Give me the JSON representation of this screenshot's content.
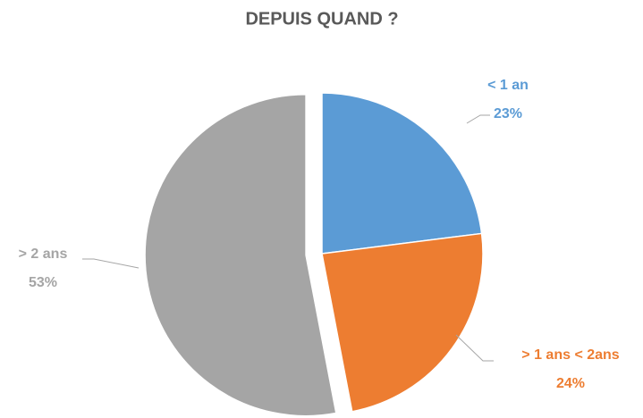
{
  "chart_data": {
    "type": "pie",
    "title": "DEPUIS QUAND ?",
    "categories": [
      "< 1 an",
      "> 1 ans < 2ans",
      "> 2 ans"
    ],
    "values": [
      23,
      24,
      53
    ],
    "value_labels": [
      "23%",
      "24%",
      "53%"
    ],
    "colors": [
      "#5b9bd5",
      "#ed7d31",
      "#a5a5a5"
    ]
  }
}
